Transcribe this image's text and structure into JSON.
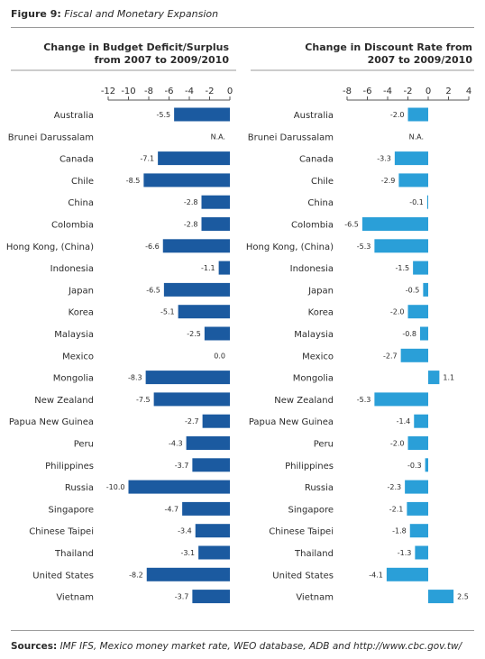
{
  "figure": {
    "label": "Figure 9:",
    "title": "Fiscal and Monetary Expansion"
  },
  "sources": {
    "label": "Sources:",
    "text": "IMF IFS, Mexico money market rate, WEO database, ADB and http://www.cbc.gov.tw/"
  },
  "chart_data": [
    {
      "type": "bar",
      "orientation": "horizontal",
      "title_lines": [
        "Change in Budget Deficit/Surplus",
        "from 2007 to 2009/2010"
      ],
      "xlim": [
        -12,
        0
      ],
      "xticks": [
        -12,
        -10,
        -8,
        -6,
        -4,
        -2,
        0
      ],
      "color": "#1b5aa0",
      "categories": [
        "Australia",
        "Brunei Darussalam",
        "Canada",
        "Chile",
        "China",
        "Colombia",
        "Hong Kong, (China)",
        "Indonesia",
        "Japan",
        "Korea",
        "Malaysia",
        "Mexico",
        "Mongolia",
        "New Zealand",
        "Papua New Guinea",
        "Peru",
        "Philippines",
        "Russia",
        "Singapore",
        "Chinese Taipei",
        "Thailand",
        "United States",
        "Vietnam"
      ],
      "values": [
        -5.5,
        null,
        -7.1,
        -8.5,
        -2.8,
        -2.8,
        -6.6,
        -1.1,
        -6.5,
        -5.1,
        -2.5,
        0.0,
        -8.3,
        -7.5,
        -2.7,
        -4.3,
        -3.7,
        -10.0,
        -4.7,
        -3.4,
        -3.1,
        -8.2,
        -3.7
      ],
      "value_labels": [
        "-5.5",
        "N.A.",
        "-7.1",
        "-8.5",
        "-2.8",
        "-2.8",
        "-6.6",
        "-1.1",
        "-6.5",
        "-5.1",
        "-2.5",
        "0.0",
        "-8.3",
        "-7.5",
        "-2.7",
        "-4.3",
        "-3.7",
        "-10.0",
        "-4.7",
        "-3.4",
        "-3.1",
        "-8.2",
        "-3.7"
      ]
    },
    {
      "type": "bar",
      "orientation": "horizontal",
      "title_lines": [
        "Change in Discount Rate from",
        "2007 to 2009/2010"
      ],
      "xlim": [
        -8,
        4
      ],
      "xticks": [
        -8,
        -6,
        -4,
        -2,
        0,
        2,
        4
      ],
      "color": "#2a9fd8",
      "categories": [
        "Australia",
        "Brunei Darussalam",
        "Canada",
        "Chile",
        "China",
        "Colombia",
        "Hong Kong, (China)",
        "Indonesia",
        "Japan",
        "Korea",
        "Malaysia",
        "Mexico",
        "Mongolia",
        "New Zealand",
        "Papua New Guinea",
        "Peru",
        "Philippines",
        "Russia",
        "Singapore",
        "Chinese Taipei",
        "Thailand",
        "United States",
        "Vietnam"
      ],
      "values": [
        -2.0,
        null,
        -3.3,
        -2.9,
        -0.1,
        -6.5,
        -5.3,
        -1.5,
        -0.5,
        -2.0,
        -0.8,
        -2.7,
        1.1,
        -5.3,
        -1.4,
        -2.0,
        -0.3,
        -2.3,
        -2.1,
        -1.8,
        -1.3,
        -4.1,
        2.5
      ],
      "value_labels": [
        "-2.0",
        "N.A.",
        "-3.3",
        "-2.9",
        "-0.1",
        "-6.5",
        "-5.3",
        "-1.5",
        "-0.5",
        "-2.0",
        "-0.8",
        "-2.7",
        "1.1",
        "-5.3",
        "-1.4",
        "-2.0",
        "-0.3",
        "-2.3",
        "-2.1",
        "-1.8",
        "-1.3",
        "-4.1",
        "2.5"
      ]
    }
  ]
}
